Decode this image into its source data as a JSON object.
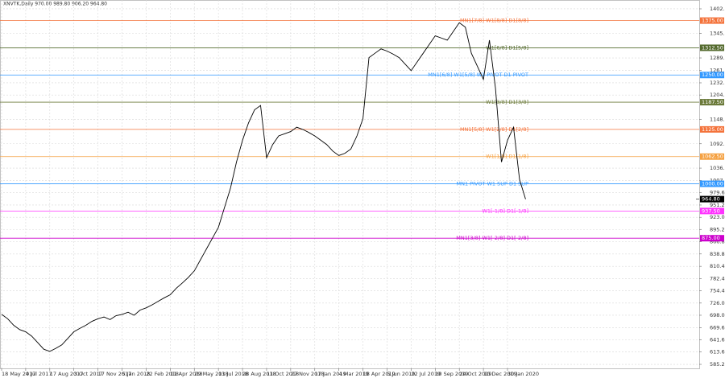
{
  "chart_data": {
    "type": "line",
    "title": "XNVTK,Daily  970.00 989.80 906.20 964.80",
    "categories": [
      "18 May 2017",
      null,
      null,
      null,
      "4 Jul 2017",
      null,
      null,
      null,
      "17 Aug 2017",
      null,
      null,
      null,
      "3 Oct 2017",
      null,
      null,
      null,
      "17 Nov 2017",
      null,
      null,
      null,
      "5 Jan 2018",
      null,
      null,
      null,
      "22 Feb 2018",
      null,
      null,
      null,
      "11 Apr 2018",
      null,
      null,
      null,
      "29 May 2018",
      null,
      null,
      null,
      "13 Jul 2018",
      null,
      null,
      null,
      "28 Aug 2018",
      null,
      null,
      null,
      "11 Oct 2018",
      null,
      null,
      null,
      "27 Nov 2018",
      null,
      null,
      null,
      "17 Jan 2019",
      null,
      null,
      null,
      "4 Mar 2019",
      null,
      null,
      null,
      "18 Apr 2019",
      null,
      null,
      null,
      "5 Jun 2019",
      null,
      null,
      null,
      "22 Jul 2019",
      null,
      null,
      null,
      "10 Sep 2019",
      null,
      null,
      null,
      "24 Oct 2019",
      null,
      null,
      null,
      "10 Dec 2019",
      null,
      null,
      null,
      "30 Jan 2020",
      null,
      null,
      null
    ],
    "values": [
      700,
      690,
      675,
      665,
      660,
      650,
      635,
      620,
      615,
      622,
      630,
      645,
      660,
      668,
      675,
      684,
      690,
      694,
      688,
      697,
      700,
      705,
      698,
      710,
      715,
      722,
      730,
      738,
      745,
      760,
      772,
      785,
      800,
      825,
      850,
      875,
      900,
      945,
      990,
      1050,
      1100,
      1140,
      1170,
      1180,
      1060,
      1090,
      1110,
      1115,
      1120,
      1130,
      1125,
      1118,
      1110,
      1100,
      1090,
      1075,
      1065,
      1070,
      1080,
      1110,
      1150,
      1290,
      1300,
      1310,
      1305,
      1298,
      1290,
      1275,
      1260,
      1280,
      1300,
      1320,
      1340,
      1335,
      1330,
      1350,
      1370,
      1360,
      1300,
      1270,
      1240,
      1330,
      1220,
      1050,
      1100,
      1130,
      1010,
      964.8
    ],
    "color": "#000000",
    "ylim": [
      576,
      1422.3
    ],
    "yticks": [
      {
        "value": 1402,
        "label": "1402.00"
      },
      {
        "value": 1345.6,
        "label": "1345.60"
      },
      {
        "value": 1289.2,
        "label": "1289.20"
      },
      {
        "value": 1261,
        "label": "1261.00"
      },
      {
        "value": 1232,
        "label": "1232.00"
      },
      {
        "value": 1204,
        "label": "1204.00"
      },
      {
        "value": 1148,
        "label": "1148.00"
      },
      {
        "value": 1092,
        "label": "1092.00"
      },
      {
        "value": 1036,
        "label": "1036.00"
      },
      {
        "value": 1007.6,
        "label": "1007.60"
      },
      {
        "value": 979.6,
        "label": "979.60"
      },
      {
        "value": 951.2,
        "label": "951.20"
      },
      {
        "value": 923,
        "label": "923.00"
      },
      {
        "value": 895.2,
        "label": "895.20"
      },
      {
        "value": 866.8,
        "label": "866.80"
      },
      {
        "value": 838.8,
        "label": "838.80"
      },
      {
        "value": 810.4,
        "label": "810.40"
      },
      {
        "value": 782.4,
        "label": "782.40"
      },
      {
        "value": 754.4,
        "label": "754.40"
      },
      {
        "value": 726,
        "label": "726.00"
      },
      {
        "value": 698,
        "label": "698.00"
      },
      {
        "value": 669.6,
        "label": "669.60"
      },
      {
        "value": 641.6,
        "label": "641.60"
      },
      {
        "value": 613.6,
        "label": "613.60"
      },
      {
        "value": 585.2,
        "label": "585.20"
      }
    ],
    "grid": true,
    "levels": [
      {
        "name": "MN1[7/8] W1[8/8] D1[8/8]",
        "value": 1375,
        "label": "1375.00",
        "color": "#f4733b"
      },
      {
        "name": "W1[6/8] D1[5/8]",
        "value": 1312.5,
        "label": "1312.50",
        "color": "#556b2f"
      },
      {
        "name": "MN1[6/8] W1[5/8] W1 PIVOT D1 PIVOT",
        "value": 1250,
        "label": "1250.00",
        "color": "#3399ff"
      },
      {
        "name": "W1[3/8] D1[3/8]",
        "value": 1187.5,
        "label": "1187.50",
        "color": "#6b7a3a"
      },
      {
        "name": "MN1[5/8] W1[2/8] D1[2/8]",
        "value": 1125,
        "label": "1125.00",
        "color": "#f4733b"
      },
      {
        "name": "W1[1/8] D1[1/8]",
        "value": 1062.5,
        "label": "1062.50",
        "color": "#f5a142"
      },
      {
        "name": "MN1 PIVOT W1 SUP D1 SUP",
        "value": 1000,
        "label": "1000.00",
        "color": "#3399ff"
      },
      {
        "name": "W1[-1/8] D1[-1/8]",
        "value": 937.5,
        "label": "937.50",
        "color": "#ff33ff"
      },
      {
        "name": "MN1[3/8] W1[-2/8] D1[-2/8]",
        "value": 875,
        "label": "875.00",
        "color": "#cc00cc"
      }
    ],
    "price_tag": {
      "value": 964.8,
      "label": "964.80"
    }
  }
}
